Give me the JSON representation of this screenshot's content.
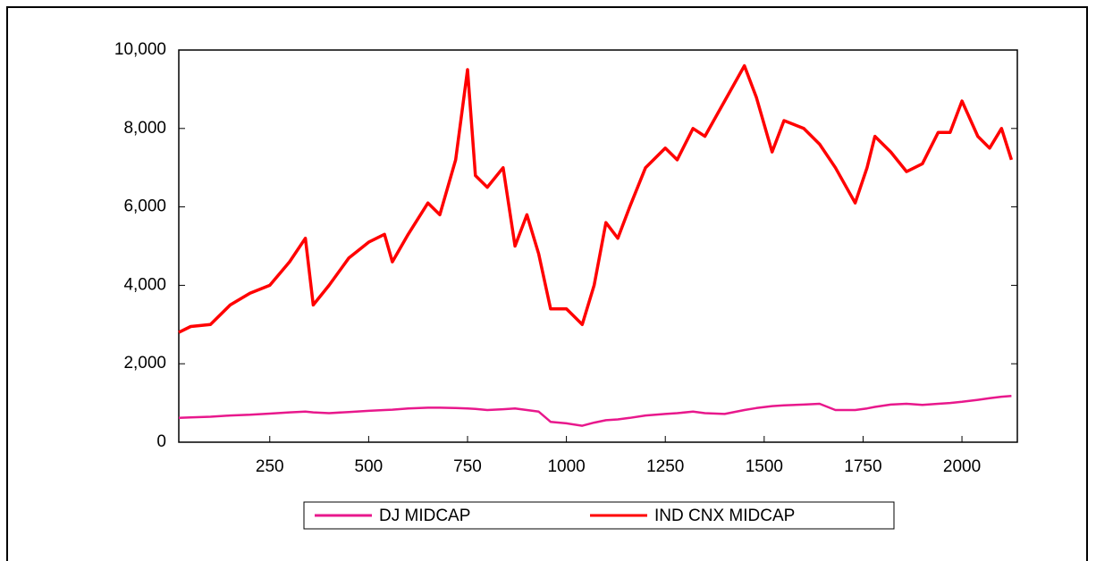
{
  "chart_data": {
    "type": "line",
    "x": [
      20,
      50,
      100,
      150,
      200,
      250,
      300,
      340,
      360,
      400,
      450,
      500,
      540,
      560,
      600,
      650,
      680,
      720,
      750,
      770,
      800,
      840,
      870,
      900,
      930,
      960,
      1000,
      1040,
      1070,
      1100,
      1130,
      1160,
      1200,
      1250,
      1280,
      1320,
      1350,
      1400,
      1450,
      1480,
      1520,
      1550,
      1600,
      1640,
      1680,
      1730,
      1760,
      1780,
      1820,
      1860,
      1900,
      1940,
      1970,
      2000,
      2040,
      2070,
      2100,
      2125
    ],
    "series": [
      {
        "name": "DJ MIDCAP",
        "color": "#e8188c",
        "values": [
          620,
          630,
          650,
          680,
          700,
          730,
          760,
          780,
          760,
          740,
          770,
          800,
          820,
          830,
          860,
          880,
          880,
          870,
          860,
          850,
          820,
          840,
          860,
          820,
          780,
          520,
          480,
          420,
          500,
          560,
          580,
          620,
          680,
          720,
          740,
          780,
          740,
          720,
          820,
          870,
          920,
          940,
          960,
          980,
          820,
          820,
          860,
          900,
          960,
          980,
          950,
          980,
          1000,
          1030,
          1080,
          1120,
          1160,
          1180
        ]
      },
      {
        "name": "IND CNX MIDCAP",
        "color": "#ff0000",
        "values": [
          2800,
          2950,
          3000,
          3500,
          3800,
          4000,
          4600,
          5200,
          3500,
          4000,
          4700,
          5100,
          5300,
          4600,
          5300,
          6100,
          5800,
          7200,
          9500,
          6800,
          6500,
          7000,
          5000,
          5800,
          4800,
          3400,
          3400,
          3000,
          4000,
          5600,
          5200,
          6000,
          7000,
          7500,
          7200,
          8000,
          7800,
          8700,
          9600,
          8800,
          7400,
          8200,
          8000,
          7600,
          7000,
          6100,
          7000,
          7800,
          7400,
          6900,
          7100,
          7900,
          7900,
          8700,
          7800,
          7500,
          8000,
          7200
        ]
      }
    ],
    "xlim": [
      20,
      2140
    ],
    "xticks": [
      250,
      500,
      750,
      1000,
      1250,
      1500,
      1750,
      2000
    ],
    "ylim": [
      0,
      10000
    ],
    "yticks": [
      0,
      {
        "value": 2000,
        "label": "2,000"
      },
      {
        "value": 4000,
        "label": "4,000"
      },
      {
        "value": 6000,
        "label": "6,000"
      },
      {
        "value": 8000,
        "label": "8,000"
      },
      {
        "value": 10000,
        "label": "10,000"
      }
    ],
    "grid": false,
    "legend": "bottom"
  }
}
